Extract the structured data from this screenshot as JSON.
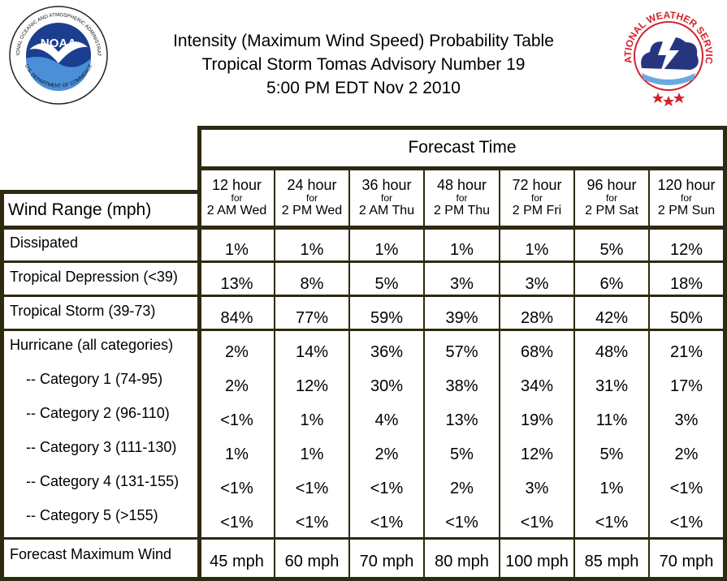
{
  "header": {
    "title_line1": "Intensity (Maximum Wind Speed) Probability Table",
    "title_line2": "Tropical Storm Tomas Advisory Number 19",
    "title_line3": "5:00 PM EDT Nov 2 2010"
  },
  "logos": {
    "noaa_text": "NOAA",
    "noaa_ring_text": "NATIONAL OCEANIC AND ATMOSPHERIC ADMINISTRATION",
    "noaa_ring_bottom": "U.S. DEPARTMENT OF COMMERCE",
    "nws_ring_text": "NATIONAL WEATHER SERVICE"
  },
  "table": {
    "forecast_time_label": "Forecast Time",
    "wind_range_label": "Wind Range (mph)",
    "columns": [
      {
        "hour": "12 hour",
        "for": "for",
        "when": "2 AM Wed"
      },
      {
        "hour": "24 hour",
        "for": "for",
        "when": "2 PM Wed"
      },
      {
        "hour": "36 hour",
        "for": "for",
        "when": "2 AM Thu"
      },
      {
        "hour": "48 hour",
        "for": "for",
        "when": "2 PM Thu"
      },
      {
        "hour": "72 hour",
        "for": "for",
        "when": "2 PM Fri"
      },
      {
        "hour": "96 hour",
        "for": "for",
        "when": "2 PM Sat"
      },
      {
        "hour": "120 hour",
        "for": "for",
        "when": "2 PM Sun"
      }
    ],
    "rows": [
      {
        "label": "Dissipated",
        "values": [
          "1%",
          "1%",
          "1%",
          "1%",
          "1%",
          "5%",
          "12%"
        ]
      },
      {
        "label": "Tropical Depression (<39)",
        "values": [
          "13%",
          "8%",
          "5%",
          "3%",
          "3%",
          "6%",
          "18%"
        ]
      },
      {
        "label": "Tropical Storm (39-73)",
        "values": [
          "84%",
          "77%",
          "59%",
          "39%",
          "28%",
          "42%",
          "50%"
        ]
      },
      {
        "label": "Hurricane (all categories)",
        "values": [
          "2%",
          "14%",
          "36%",
          "57%",
          "68%",
          "48%",
          "21%"
        ]
      },
      {
        "label": "-- Category 1 (74-95)",
        "values": [
          "2%",
          "12%",
          "30%",
          "38%",
          "34%",
          "31%",
          "17%"
        ]
      },
      {
        "label": "-- Category 2 (96-110)",
        "values": [
          "<1%",
          "1%",
          "4%",
          "13%",
          "19%",
          "11%",
          "3%"
        ]
      },
      {
        "label": "-- Category 3 (111-130)",
        "values": [
          "1%",
          "1%",
          "2%",
          "5%",
          "12%",
          "5%",
          "2%"
        ]
      },
      {
        "label": "-- Category 4 (131-155)",
        "values": [
          "<1%",
          "<1%",
          "<1%",
          "2%",
          "3%",
          "1%",
          "<1%"
        ]
      },
      {
        "label": "-- Category 5 (>155)",
        "values": [
          "<1%",
          "<1%",
          "<1%",
          "<1%",
          "<1%",
          "<1%",
          "<1%"
        ]
      },
      {
        "label": "Forecast Maximum Wind",
        "values": [
          "45 mph",
          "60 mph",
          "70 mph",
          "80 mph",
          "100 mph",
          "85 mph",
          "70 mph"
        ]
      }
    ]
  },
  "colors": {
    "grid": "#2e2a10",
    "noaa_blue": "#1b3e8f",
    "nws_red": "#d4222b",
    "nws_cloud": "#27357f"
  }
}
